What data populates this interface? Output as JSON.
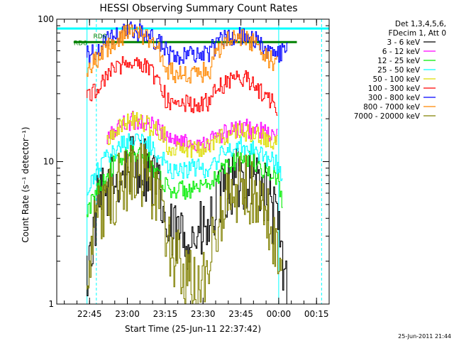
{
  "chart_data": {
    "type": "line",
    "title": "HESSI Observing Summary Count Rates",
    "xlabel": "Start Time (25-Jun-11 22:37:42)",
    "ylabel": "Count Rate (s⁻¹ detector⁻¹)",
    "yscale": "log",
    "ylim": [
      1,
      100
    ],
    "xlim": [
      -5.7,
      102.3
    ],
    "x_units": "minutes after 22:37:42",
    "yticks": [
      "1",
      "10",
      "100"
    ],
    "xticks": [
      {
        "label": "22:45",
        "value": 7.3
      },
      {
        "label": "23:00",
        "value": 22.3
      },
      {
        "label": "23:15",
        "value": 37.3
      },
      {
        "label": "23:30",
        "value": 52.3
      },
      {
        "label": "23:45",
        "value": 67.3
      },
      {
        "label": "00:00",
        "value": 82.3
      },
      {
        "label": "00:15",
        "value": 97.3
      }
    ],
    "legend_header": [
      "Det 1,3,4,5,6,",
      "FDecim 1, Att 0"
    ],
    "legend_placement": "right",
    "x": [
      -5.7,
      6.3,
      10.3,
      14.3,
      18.3,
      22.3,
      26.3,
      30.3,
      34.3,
      37.3,
      38.3,
      42.3,
      46.3,
      50.3,
      55.3,
      56.3,
      58.3,
      62.3,
      66.3,
      70.3,
      74.3,
      78.3,
      82.3,
      84.3,
      86.3,
      88.3,
      102.3
    ],
    "series": [
      {
        "name": "3 - 6 keV",
        "color": "#000000",
        "values": [
          null,
          1.5,
          4.5,
          6.0,
          7.5,
          9.0,
          10.0,
          9.0,
          6.5,
          4.2,
          3.0,
          3.0,
          3.0,
          3.0,
          3.2,
          4.0,
          5.0,
          6.5,
          7.5,
          8.0,
          7.5,
          5.5,
          3.5,
          1.8,
          1.0,
          null,
          null
        ]
      },
      {
        "name": "6 - 12 keV",
        "color": "#ff00ff",
        "values": [
          null,
          null,
          null,
          14.0,
          17.0,
          19.0,
          19.5,
          18.5,
          17.0,
          16.0,
          15.0,
          14.0,
          13.5,
          13.5,
          14.0,
          14.5,
          15.0,
          16.0,
          17.0,
          17.0,
          16.5,
          15.5,
          14.5,
          null,
          null,
          null,
          null
        ]
      },
      {
        "name": "12 - 25 keV",
        "color": "#00ee00",
        "values": [
          null,
          4.0,
          6.5,
          8.0,
          10.0,
          11.0,
          11.5,
          10.5,
          8.5,
          7.0,
          6.5,
          6.3,
          6.3,
          6.3,
          6.5,
          7.0,
          8.0,
          9.5,
          10.5,
          10.5,
          9.5,
          8.5,
          7.5,
          5.0,
          null,
          null,
          null
        ]
      },
      {
        "name": "25 - 50 keV",
        "color": "#00ffff",
        "values": [
          null,
          5.5,
          8.5,
          10.5,
          12.5,
          14.0,
          14.5,
          13.5,
          11.5,
          10.0,
          9.0,
          8.8,
          8.8,
          9.0,
          9.0,
          9.5,
          10.5,
          12.0,
          13.0,
          13.0,
          12.0,
          10.5,
          9.5,
          7.0,
          null,
          null,
          null
        ]
      },
      {
        "name": "50 - 100 keV",
        "color": "#dddd00",
        "values": [
          null,
          null,
          null,
          14.0,
          17.5,
          19.0,
          19.5,
          18.5,
          16.5,
          15.0,
          13.0,
          12.5,
          12.5,
          12.5,
          13.0,
          13.5,
          14.5,
          15.5,
          16.0,
          16.0,
          15.0,
          14.0,
          13.5,
          null,
          null,
          null,
          null
        ]
      },
      {
        "name": "100 - 300 keV",
        "color": "#ff0000",
        "values": [
          null,
          28.0,
          33.0,
          40.0,
          47.0,
          50.0,
          50.0,
          46.0,
          38.0,
          30.0,
          26.0,
          25.5,
          25.5,
          25.5,
          26.0,
          29.0,
          33.0,
          37.0,
          38.5,
          37.0,
          33.0,
          28.0,
          24.0,
          null,
          null,
          null,
          null
        ]
      },
      {
        "name": "300 - 800 keV",
        "color": "#0000ff",
        "values": [
          null,
          55.0,
          62.0,
          70.0,
          78.0,
          82.0,
          82.0,
          78.0,
          70.0,
          62.0,
          56.0,
          55.0,
          55.0,
          55.0,
          56.0,
          62.0,
          68.0,
          75.0,
          79.0,
          76.0,
          70.0,
          60.0,
          55.0,
          58.0,
          62.0,
          null,
          null
        ]
      },
      {
        "name": "800 - 7000 keV",
        "color": "#ff8800",
        "values": [
          null,
          44.0,
          52.0,
          62.0,
          72.0,
          80.0,
          80.0,
          74.0,
          63.0,
          53.0,
          44.0,
          41.0,
          40.0,
          41.0,
          44.0,
          52.0,
          60.0,
          70.0,
          75.0,
          72.0,
          64.0,
          54.0,
          48.0,
          null,
          null,
          null,
          null
        ]
      },
      {
        "name": "7000 - 20000 keV",
        "color": "#808000",
        "values": [
          null,
          1.6,
          4.0,
          5.0,
          6.5,
          7.5,
          8.0,
          7.5,
          5.0,
          3.5,
          2.5,
          2.0,
          1.5,
          1.2,
          1.5,
          2.5,
          4.0,
          5.5,
          6.5,
          6.5,
          5.5,
          4.0,
          2.5,
          1.0,
          null,
          null,
          null
        ]
      }
    ],
    "annotations": [
      {
        "text": "RD0",
        "x": 8.8,
        "y": 76,
        "color": "#008000"
      },
      {
        "text": "RD6",
        "x": 1.0,
        "y": 68,
        "color": "#008000"
      }
    ],
    "reference_lines": [
      {
        "color": "#008000",
        "y": 69,
        "x_from": 1.0,
        "x_to": 89.5
      },
      {
        "color": "#00ffff",
        "y": 86,
        "x_from": -5.7,
        "x_to": 102.3
      }
    ],
    "vertical_lines": [
      {
        "x": 6.3,
        "color": "#00ffff",
        "style": "solid"
      },
      {
        "x": 10.0,
        "color": "#00ffff",
        "style": "dashed"
      },
      {
        "x": 82.3,
        "color": "#00ffff",
        "style": "solid"
      },
      {
        "x": 99.3,
        "color": "#00ffff",
        "style": "dashed"
      }
    ]
  },
  "footer": {
    "timestamp": "25-Jun-2011 21:44"
  }
}
